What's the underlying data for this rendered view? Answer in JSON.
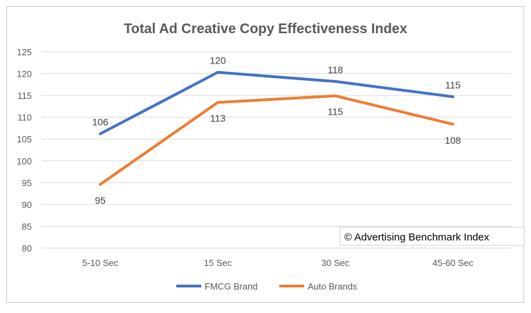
{
  "chart_data": {
    "type": "line",
    "title": "Total Ad Creative Copy Effectiveness Index",
    "categories": [
      "5-10 Sec",
      "15 Sec",
      "30 Sec",
      "45-60 Sec"
    ],
    "series": [
      {
        "name": "FMCG Brand",
        "color": "#4472C4",
        "values": [
          106,
          120,
          118,
          115
        ],
        "raw_values": [
          106.2,
          120.3,
          118.2,
          114.7
        ],
        "label_position": [
          "above",
          "above",
          "above",
          "above"
        ]
      },
      {
        "name": "Auto Brands",
        "color": "#ED7D31",
        "values": [
          95,
          113,
          115,
          108
        ],
        "raw_values": [
          94.6,
          113.4,
          114.9,
          108.4
        ],
        "label_position": [
          "below",
          "below",
          "below",
          "below"
        ]
      }
    ],
    "y_ticks": [
      80,
      85,
      90,
      95,
      100,
      105,
      110,
      115,
      120,
      125
    ],
    "ylim": [
      80,
      125
    ],
    "grid": true,
    "legend": "bottom",
    "annotation": "© Advertising Benchmark Index"
  }
}
